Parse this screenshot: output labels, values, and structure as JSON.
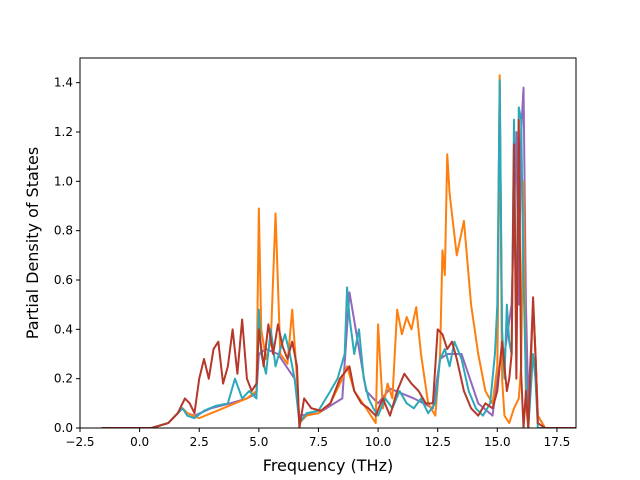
{
  "chart_data": {
    "type": "line",
    "title": "",
    "xlabel": "Frequency (THz)",
    "ylabel": "Partial Density of States",
    "xlim": [
      -2.5,
      18.3
    ],
    "ylim": [
      0.0,
      1.5
    ],
    "xticks": [
      -2.5,
      0.0,
      2.5,
      5.0,
      7.5,
      10.0,
      12.5,
      15.0,
      17.5
    ],
    "xtick_labels": [
      "−2.5",
      "0.0",
      "2.5",
      "5.0",
      "7.5",
      "10.0",
      "12.5",
      "15.0",
      "17.5"
    ],
    "yticks": [
      0.0,
      0.2,
      0.4,
      0.6,
      0.8,
      1.0,
      1.2,
      1.4
    ],
    "ytick_labels": [
      "0.0",
      "0.2",
      "0.4",
      "0.6",
      "0.8",
      "1.0",
      "1.2",
      "1.4"
    ],
    "grid": false,
    "legend": "none",
    "series": [
      {
        "color": "#9467bd",
        "x": [
          -1.6,
          0.5,
          1.2,
          1.8,
          2.0,
          2.3,
          3.0,
          3.8,
          4.5,
          4.9,
          5.0,
          5.3,
          5.8,
          6.5,
          6.7,
          7.5,
          8.5,
          8.8,
          9.5,
          10.0,
          10.5,
          11.5,
          12.3,
          12.6,
          12.9,
          13.5,
          14.2,
          14.8,
          15.0,
          15.1,
          15.2,
          15.3,
          15.6,
          15.8,
          15.9,
          16.0,
          16.1,
          16.2,
          16.3,
          16.5,
          16.6,
          16.7,
          17.0,
          18.3
        ],
        "y": [
          0.0,
          0.0,
          0.02,
          0.08,
          0.06,
          0.05,
          0.08,
          0.1,
          0.12,
          0.14,
          0.3,
          0.32,
          0.3,
          0.2,
          0.05,
          0.06,
          0.12,
          0.55,
          0.15,
          0.1,
          0.16,
          0.12,
          0.08,
          0.28,
          0.3,
          0.3,
          0.1,
          0.05,
          0.2,
          1.4,
          0.3,
          0.3,
          0.5,
          1.2,
          0.5,
          1.2,
          1.38,
          0.5,
          0.1,
          0.5,
          0.3,
          0.05,
          0.0,
          0.0
        ]
      },
      {
        "color": "#ff7f0e",
        "x": [
          -1.6,
          0.5,
          1.2,
          1.8,
          2.0,
          2.5,
          3.0,
          3.5,
          4.0,
          4.5,
          4.9,
          5.0,
          5.1,
          5.3,
          5.5,
          5.7,
          5.9,
          6.2,
          6.4,
          6.6,
          6.7,
          7.0,
          7.5,
          8.0,
          8.5,
          8.7,
          9.0,
          9.5,
          9.9,
          10.0,
          10.2,
          10.4,
          10.6,
          10.8,
          11.0,
          11.2,
          11.4,
          11.6,
          11.8,
          12.1,
          12.4,
          12.6,
          12.7,
          12.8,
          12.9,
          13.0,
          13.3,
          13.6,
          13.9,
          14.2,
          14.5,
          14.8,
          15.0,
          15.1,
          15.2,
          15.3,
          15.5,
          15.7,
          15.9,
          16.0,
          16.1,
          16.2,
          16.3,
          16.5,
          16.6,
          16.7,
          17.0,
          18.3
        ],
        "y": [
          0.0,
          0.0,
          0.02,
          0.08,
          0.06,
          0.04,
          0.06,
          0.08,
          0.1,
          0.12,
          0.15,
          0.89,
          0.4,
          0.28,
          0.35,
          0.87,
          0.3,
          0.26,
          0.48,
          0.2,
          0.02,
          0.05,
          0.06,
          0.1,
          0.2,
          0.25,
          0.15,
          0.08,
          0.02,
          0.42,
          0.08,
          0.18,
          0.12,
          0.48,
          0.38,
          0.45,
          0.4,
          0.49,
          0.3,
          0.1,
          0.05,
          0.3,
          0.72,
          0.62,
          1.11,
          0.95,
          0.7,
          0.84,
          0.5,
          0.3,
          0.15,
          0.1,
          0.25,
          1.43,
          0.2,
          0.05,
          0.02,
          0.08,
          0.12,
          0.25,
          1.0,
          0.1,
          0.0,
          0.5,
          0.3,
          0.05,
          0.0,
          0.0
        ]
      },
      {
        "color": "#2ca9b8",
        "x": [
          -1.6,
          0.5,
          1.2,
          1.8,
          2.0,
          2.3,
          2.7,
          3.2,
          3.7,
          4.0,
          4.3,
          4.6,
          4.9,
          5.0,
          5.1,
          5.3,
          5.5,
          5.7,
          5.9,
          6.1,
          6.3,
          6.5,
          6.7,
          7.0,
          7.5,
          8.0,
          8.3,
          8.6,
          8.7,
          8.8,
          9.0,
          9.2,
          9.4,
          9.6,
          9.8,
          10.0,
          10.3,
          10.6,
          10.9,
          11.2,
          11.5,
          11.8,
          12.1,
          12.4,
          12.6,
          12.8,
          13.0,
          13.2,
          13.5,
          13.8,
          14.1,
          14.4,
          14.7,
          14.9,
          15.0,
          15.1,
          15.2,
          15.3,
          15.4,
          15.5,
          15.6,
          15.7,
          15.8,
          15.9,
          16.0,
          16.1,
          16.2,
          16.3,
          16.5,
          16.6,
          16.7,
          17.0,
          18.3
        ],
        "y": [
          0.0,
          0.0,
          0.02,
          0.08,
          0.05,
          0.04,
          0.07,
          0.09,
          0.1,
          0.2,
          0.12,
          0.15,
          0.12,
          0.48,
          0.3,
          0.22,
          0.4,
          0.25,
          0.32,
          0.38,
          0.3,
          0.2,
          0.02,
          0.06,
          0.07,
          0.15,
          0.2,
          0.3,
          0.57,
          0.45,
          0.3,
          0.4,
          0.2,
          0.12,
          0.08,
          0.05,
          0.12,
          0.08,
          0.15,
          0.1,
          0.08,
          0.12,
          0.06,
          0.1,
          0.28,
          0.32,
          0.25,
          0.35,
          0.28,
          0.15,
          0.08,
          0.05,
          0.1,
          0.3,
          0.5,
          1.41,
          0.4,
          0.2,
          0.5,
          0.35,
          0.3,
          1.25,
          0.3,
          1.3,
          1.25,
          0.6,
          0.2,
          0.0,
          0.3,
          0.2,
          0.0,
          0.0,
          0.0
        ]
      },
      {
        "color": "#b5382a",
        "x": [
          -1.6,
          0.5,
          1.2,
          1.6,
          1.9,
          2.1,
          2.3,
          2.5,
          2.7,
          2.9,
          3.1,
          3.3,
          3.5,
          3.7,
          3.9,
          4.1,
          4.3,
          4.5,
          4.7,
          4.9,
          5.0,
          5.2,
          5.4,
          5.6,
          5.8,
          6.0,
          6.2,
          6.4,
          6.6,
          6.7,
          6.9,
          7.2,
          7.6,
          8.0,
          8.4,
          8.8,
          9.0,
          9.3,
          9.6,
          9.9,
          10.2,
          10.5,
          10.8,
          11.1,
          11.4,
          11.7,
          12.0,
          12.3,
          12.5,
          12.7,
          12.9,
          13.1,
          13.3,
          13.6,
          13.9,
          14.2,
          14.5,
          14.8,
          15.0,
          15.2,
          15.4,
          15.5,
          15.6,
          15.7,
          15.8,
          15.9,
          16.0,
          16.1,
          16.2,
          16.3,
          16.5,
          16.6,
          16.7,
          17.0,
          18.3
        ],
        "y": [
          0.0,
          0.0,
          0.02,
          0.06,
          0.12,
          0.1,
          0.06,
          0.2,
          0.28,
          0.2,
          0.32,
          0.35,
          0.18,
          0.25,
          0.4,
          0.22,
          0.44,
          0.2,
          0.15,
          0.18,
          0.4,
          0.25,
          0.42,
          0.3,
          0.42,
          0.33,
          0.28,
          0.35,
          0.25,
          0.0,
          0.12,
          0.08,
          0.07,
          0.1,
          0.2,
          0.25,
          0.15,
          0.1,
          0.08,
          0.05,
          0.12,
          0.05,
          0.15,
          0.22,
          0.18,
          0.15,
          0.1,
          0.1,
          0.4,
          0.38,
          0.32,
          0.35,
          0.28,
          0.15,
          0.08,
          0.05,
          0.1,
          0.08,
          0.15,
          0.35,
          0.15,
          0.2,
          0.3,
          1.15,
          0.2,
          1.25,
          0.22,
          0.0,
          0.15,
          0.0,
          0.53,
          0.3,
          0.02,
          0.0,
          0.0
        ]
      }
    ]
  }
}
